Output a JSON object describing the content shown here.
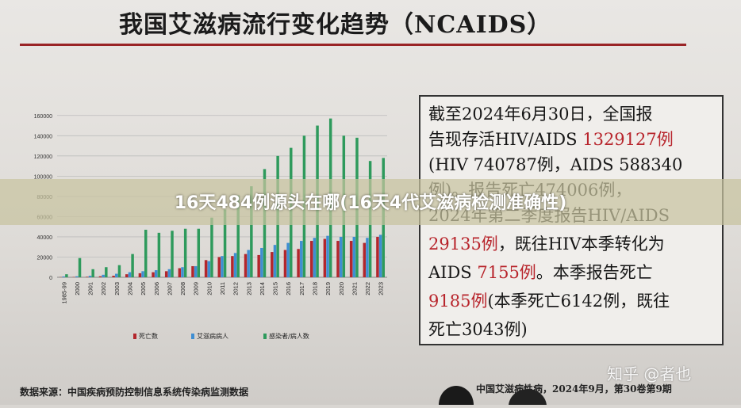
{
  "title": "我国艾滋病流行变化趋势（NCAIDS）",
  "banner": "16天484例源头在哪(16天4代艾滋病检测准确性)",
  "source": "数据来源：中国疾病预防控制信息系统传染病监测数据",
  "footer_right": "中国艾滋病性病，2024年9月，第30卷第9期",
  "watermark": "知乎 @者也",
  "info_lines": [
    {
      "parts": [
        {
          "text": "截至2024年6月30日，全国报",
          "red": false
        }
      ]
    },
    {
      "parts": [
        {
          "text": "告现存活HIV/AIDS ",
          "red": false
        },
        {
          "text": "1329127例",
          "red": true
        }
      ]
    },
    {
      "parts": [
        {
          "text": "(HIV 740787例，AIDS 588340",
          "red": false
        }
      ]
    },
    {
      "parts": [
        {
          "text": "例)。报告死亡474006例，",
          "red": false
        }
      ]
    },
    {
      "parts": [
        {
          "text": "2024年第二季度报告HIV/AIDS",
          "red": false
        }
      ]
    },
    {
      "parts": [
        {
          "text": "29135例",
          "red": true
        },
        {
          "text": "，既往HIV本季转化为",
          "red": false
        }
      ]
    },
    {
      "parts": [
        {
          "text": "AIDS ",
          "red": false
        },
        {
          "text": "7155例",
          "red": true
        },
        {
          "text": "。本季报告死亡",
          "red": false
        }
      ]
    },
    {
      "parts": [
        {
          "text": "9185例",
          "red": true
        },
        {
          "text": "(本季死亡6142例，既往",
          "red": false
        }
      ]
    },
    {
      "parts": [
        {
          "text": "死亡3043例)",
          "red": false
        }
      ]
    }
  ],
  "chart_data": {
    "type": "bar",
    "categories": [
      "1985-99",
      "2000",
      "2001",
      "2002",
      "2003",
      "2004",
      "2005",
      "2006",
      "2007",
      "2008",
      "2009",
      "2010",
      "2011",
      "2012",
      "2013",
      "2014",
      "2015",
      "2016",
      "2017",
      "2018",
      "2019",
      "2020",
      "2021",
      "2022",
      "2023"
    ],
    "series": [
      {
        "name": "死亡数",
        "color": "#b3262c",
        "values": [
          200,
          300,
          500,
          1000,
          1500,
          3000,
          4000,
          5000,
          6000,
          9000,
          11000,
          17000,
          20000,
          21000,
          23000,
          22000,
          25000,
          27000,
          28000,
          36000,
          38000,
          36000,
          36000,
          34000,
          40000
        ]
      },
      {
        "name": "艾滋病病人",
        "color": "#3f8ed2",
        "values": [
          800,
          1000,
          1500,
          2500,
          3500,
          5000,
          6000,
          7000,
          8000,
          10000,
          11000,
          16000,
          21000,
          24000,
          27000,
          29000,
          32000,
          34000,
          36000,
          39000,
          41000,
          40000,
          40000,
          39000,
          42000
        ]
      },
      {
        "name": "感染者/病人数",
        "color": "#2e9a5c",
        "values": [
          3000,
          19000,
          8000,
          10000,
          12000,
          23000,
          47000,
          44000,
          46000,
          48000,
          48000,
          59000,
          67000,
          81000,
          90000,
          107000,
          120000,
          128000,
          140000,
          150000,
          157000,
          140000,
          138000,
          115000,
          118000
        ]
      }
    ],
    "yticks": [
      0,
      20000,
      40000,
      60000,
      80000,
      100000,
      120000,
      140000,
      160000
    ],
    "ylim": [
      0,
      170000
    ],
    "grid": true,
    "legend": "bottom"
  }
}
